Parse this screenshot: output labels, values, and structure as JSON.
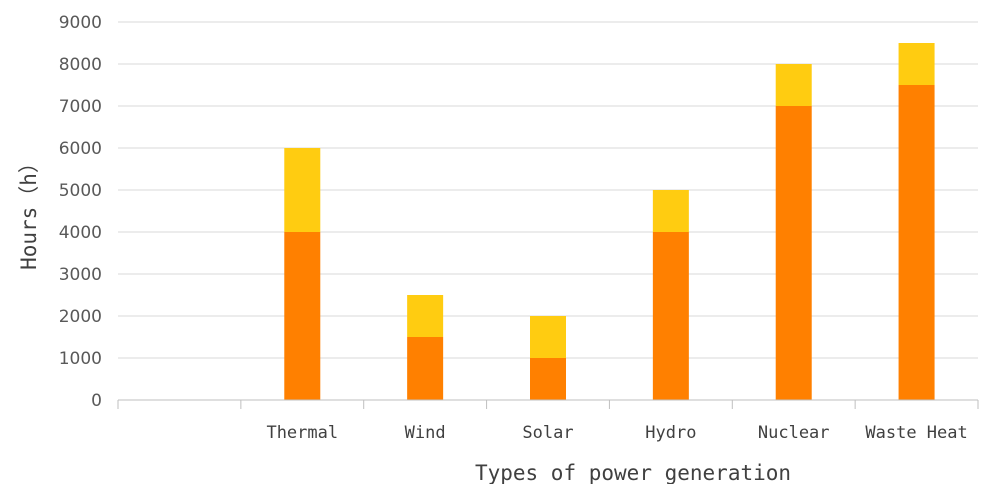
{
  "chart_data": {
    "type": "bar",
    "stacked": true,
    "categories": [
      "",
      "Thermal",
      "Wind",
      "Solar",
      "Hydro",
      "Nuclear",
      "Waste Heat"
    ],
    "series": [
      {
        "values": [
          0,
          4000,
          1500,
          1000,
          4000,
          7000,
          7500
        ],
        "color": "#ff8000"
      },
      {
        "values": [
          0,
          2000,
          1000,
          1000,
          1000,
          1000,
          1000
        ],
        "color": "#ffcc11"
      }
    ],
    "title": "",
    "xlabel": "Types of power generation",
    "ylabel": "Hours（h）",
    "ylim": [
      0,
      9000
    ],
    "yticks": [
      0,
      1000,
      2000,
      3000,
      4000,
      5000,
      6000,
      7000,
      8000,
      9000
    ],
    "grid": true,
    "legend": "none"
  }
}
